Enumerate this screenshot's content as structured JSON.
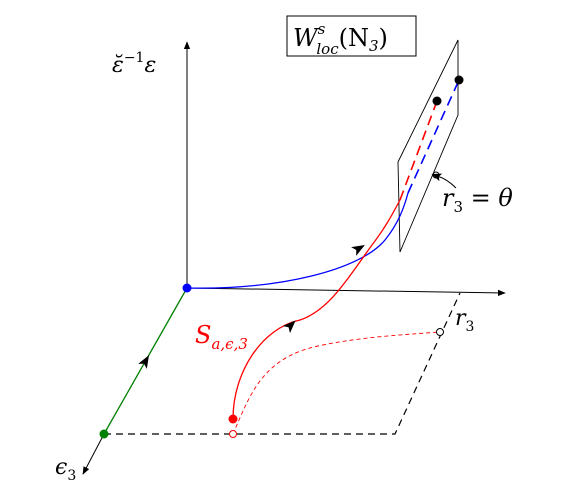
{
  "labels": {
    "box_label": "W",
    "box_label_sup": "s",
    "box_label_sub": "loc",
    "box_label_arg": "(N",
    "box_label_arg_sub": "3",
    "box_label_close": ")",
    "vertical_axis_label_base": "ε̆",
    "vertical_axis_label_sup": "−1",
    "vertical_axis_label_tail": "ε",
    "r3_axis_label": "r",
    "r3_axis_sub": "3",
    "eps3_axis_label": "ϵ",
    "eps3_axis_sub": "3",
    "plane_label": "r",
    "plane_label_sub": "3",
    "plane_label_rest": " = θ",
    "manifold_label": "S",
    "manifold_label_sub": "a,ϵ,3"
  },
  "colors": {
    "axes": "#000000",
    "blue_orbit": "#0000ff",
    "red_orbit": "#ff0000",
    "green_orbit": "#008000",
    "dashed_frame": "#000000",
    "red_projection": "#ff0000"
  }
}
